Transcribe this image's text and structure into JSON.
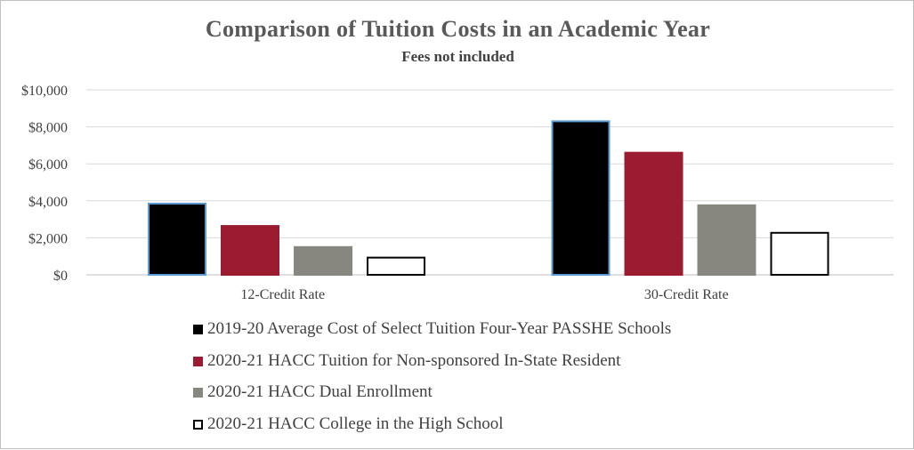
{
  "chart_data": {
    "type": "bar",
    "title": "Comparison of Tuition Costs in an Academic Year",
    "subtitle": "Fees not included",
    "xlabel": "",
    "ylabel": "",
    "ylim": [
      0,
      10000
    ],
    "yticks": [
      0,
      2000,
      4000,
      6000,
      8000,
      10000
    ],
    "ytick_labels": [
      "$0",
      "$2,000",
      "$4,000",
      "$6,000",
      "$8,000",
      "$10,000"
    ],
    "grid": true,
    "legend_position": "bottom",
    "categories": [
      "12-Credit Rate",
      "30-Credit Rate"
    ],
    "series": [
      {
        "name": "2019-20 Average Cost of Select Tuition Four-Year PASSHE Schools",
        "values": [
          3850,
          8300
        ],
        "color": "#000000",
        "outline": "#5b9bd5"
      },
      {
        "name": "2020-21 HACC Tuition for Non-sponsored In-State Resident",
        "values": [
          2640,
          6600
        ],
        "color": "#9b1b30",
        "outline": "#9b1b30"
      },
      {
        "name": "2020-21 HACC Dual Enrollment",
        "values": [
          1500,
          3760
        ],
        "color": "#878780",
        "outline": "#878780"
      },
      {
        "name": "2020-21 HACC College in the High School",
        "values": [
          930,
          2270
        ],
        "color": "#ffffff",
        "outline": "#000000"
      }
    ]
  }
}
